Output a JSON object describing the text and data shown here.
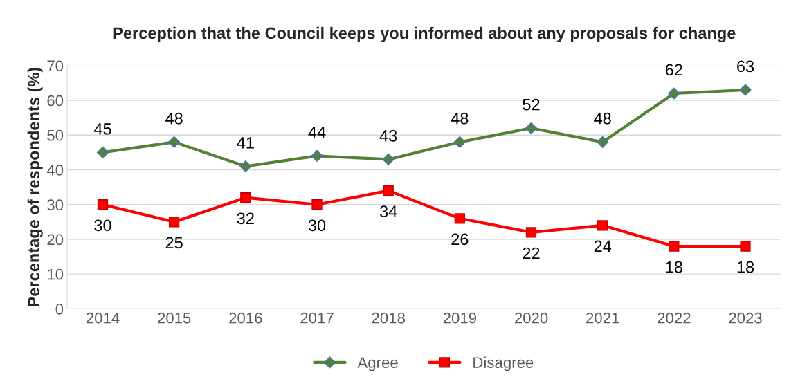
{
  "chart_data": {
    "type": "line",
    "title": "Perception that the Council keeps you informed about any proposals for change",
    "ylabel": "Percentage of respondents (%)",
    "categories": [
      "2014",
      "2015",
      "2016",
      "2017",
      "2018",
      "2019",
      "2020",
      "2021",
      "2022",
      "2023"
    ],
    "series": [
      {
        "name": "Agree",
        "color": "#548235",
        "marker": "diamond",
        "values": [
          45,
          48,
          41,
          44,
          43,
          48,
          52,
          48,
          62,
          63
        ]
      },
      {
        "name": "Disagree",
        "color": "#ff0000",
        "marker": "square",
        "values": [
          30,
          25,
          32,
          30,
          34,
          26,
          22,
          24,
          18,
          18
        ]
      }
    ],
    "ylim": [
      0,
      70
    ],
    "yticks": [
      0,
      10,
      20,
      30,
      40,
      50,
      60,
      70
    ],
    "grid": "y",
    "legend": "bottom",
    "data_labels": true,
    "line_style": "solid"
  }
}
